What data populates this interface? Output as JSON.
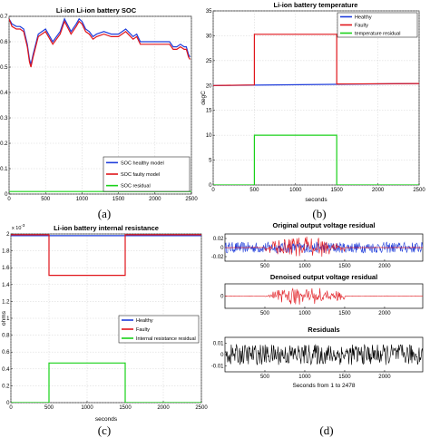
{
  "captions": [
    "(a)",
    "(b)",
    "(c)",
    "(d)"
  ],
  "chart_data": [
    {
      "type": "line",
      "title": "Li-ion Li-ion battery SOC",
      "xlabel": "",
      "ylabel": "",
      "xlim": [
        0,
        2500
      ],
      "ylim": [
        0,
        0.7
      ],
      "xticks": [
        "0",
        "500",
        "1000",
        "1500",
        "2000",
        "2500"
      ],
      "yticks": [
        "0",
        "0.1",
        "0.2",
        "0.3",
        "0.4",
        "0.5",
        "0.6",
        "0.7"
      ],
      "grid": true,
      "legend": "bottom-right",
      "series": [
        {
          "name": "SOC healthy model",
          "color": "#1f3ddb",
          "x": [
            0,
            40,
            100,
            150,
            200,
            250,
            280,
            300,
            330,
            400,
            500,
            600,
            700,
            760,
            850,
            920,
            960,
            1000,
            1050,
            1100,
            1150,
            1200,
            1300,
            1400,
            1500,
            1600,
            1700,
            1750,
            1800,
            2000,
            2200,
            2250,
            2300,
            2350,
            2400,
            2430,
            2460,
            2480
          ],
          "y": [
            0.69,
            0.67,
            0.66,
            0.66,
            0.65,
            0.59,
            0.53,
            0.51,
            0.55,
            0.63,
            0.65,
            0.6,
            0.64,
            0.69,
            0.64,
            0.67,
            0.69,
            0.68,
            0.65,
            0.64,
            0.62,
            0.63,
            0.64,
            0.63,
            0.63,
            0.65,
            0.62,
            0.63,
            0.6,
            0.6,
            0.6,
            0.58,
            0.58,
            0.59,
            0.58,
            0.58,
            0.55,
            0.54
          ]
        },
        {
          "name": "SOC faulty model",
          "color": "#e0151b",
          "x": [
            0,
            40,
            100,
            150,
            200,
            250,
            280,
            300,
            330,
            400,
            500,
            600,
            700,
            760,
            850,
            920,
            960,
            1000,
            1050,
            1100,
            1150,
            1200,
            1300,
            1400,
            1500,
            1600,
            1700,
            1750,
            1800,
            2000,
            2200,
            2250,
            2300,
            2350,
            2400,
            2430,
            2460,
            2480
          ],
          "y": [
            0.69,
            0.66,
            0.65,
            0.65,
            0.64,
            0.58,
            0.52,
            0.5,
            0.54,
            0.62,
            0.64,
            0.59,
            0.63,
            0.68,
            0.63,
            0.66,
            0.68,
            0.67,
            0.64,
            0.63,
            0.61,
            0.62,
            0.63,
            0.62,
            0.62,
            0.64,
            0.61,
            0.62,
            0.59,
            0.59,
            0.59,
            0.57,
            0.57,
            0.58,
            0.57,
            0.57,
            0.54,
            0.53
          ]
        },
        {
          "name": "SOC residual",
          "color": "#19d119",
          "x": [
            0,
            2500
          ],
          "y": [
            0.01,
            0.01
          ]
        }
      ]
    },
    {
      "type": "line",
      "title": "Li-ion battery temperature",
      "xlabel": "seconds",
      "ylabel": "degC",
      "xlim": [
        0,
        2500
      ],
      "ylim": [
        0,
        35
      ],
      "xticks": [
        "0",
        "500",
        "1000",
        "1500",
        "2000",
        "2500"
      ],
      "yticks": [
        "0",
        "5",
        "10",
        "15",
        "20",
        "25",
        "30",
        "35"
      ],
      "grid": true,
      "legend": "top-right",
      "series": [
        {
          "name": "Healthy",
          "color": "#1f3ddb",
          "x": [
            0,
            2500
          ],
          "y": [
            20,
            20.4
          ]
        },
        {
          "name": "Faulty",
          "color": "#e0151b",
          "x": [
            0,
            500,
            500,
            1500,
            1500,
            2500
          ],
          "y": [
            20,
            20.1,
            30.3,
            30.3,
            20.3,
            20.4
          ]
        },
        {
          "name": "temperature residual",
          "color": "#19d119",
          "x": [
            0,
            500,
            500,
            1500,
            1500,
            2500
          ],
          "y": [
            0,
            0,
            10,
            10,
            0,
            0
          ]
        }
      ]
    },
    {
      "type": "line",
      "title": "Li-ion battery internal resistance",
      "xlabel": "seconds",
      "ylabel": "ohms",
      "multiplier": "x 10",
      "multiplier_exp": "-3",
      "xlim": [
        0,
        2500
      ],
      "ylim": [
        0,
        2
      ],
      "xticks": [
        "0",
        "500",
        "1000",
        "1500",
        "2000",
        "2500"
      ],
      "yticks": [
        "0",
        "0.2",
        "0.4",
        "0.6",
        "0.8",
        "1",
        "1.2",
        "1.4",
        "1.6",
        "1.8",
        "2"
      ],
      "grid": true,
      "legend": "right",
      "series": [
        {
          "name": "Healthy",
          "color": "#1f3ddb",
          "x": [
            0,
            2500
          ],
          "y": [
            1.98,
            1.98
          ]
        },
        {
          "name": "Faulty",
          "color": "#e0151b",
          "x": [
            0,
            500,
            500,
            1500,
            1500,
            2500
          ],
          "y": [
            1.99,
            1.99,
            1.51,
            1.51,
            1.99,
            1.99
          ]
        },
        {
          "name": "Internal resistance residual",
          "color": "#19d119",
          "x": [
            0,
            500,
            500,
            1500,
            1500,
            2500
          ],
          "y": [
            0,
            0,
            0.47,
            0.47,
            0,
            0
          ]
        }
      ]
    },
    {
      "type": "line",
      "title": "Original output voltage residual",
      "xlim": [
        0,
        2478
      ],
      "ylim": [
        -0.03,
        0.03
      ],
      "xticks": [
        "500",
        "1000",
        "1500",
        "2000"
      ],
      "yticks": [
        "-0.02",
        "0",
        "0.02"
      ],
      "series": [
        {
          "name": "",
          "color": "#1f3ddb",
          "noise_amplitude": 0.012
        },
        {
          "name": "",
          "color": "#e0151b",
          "burst_from": 500,
          "burst_to": 1500,
          "burst_amplitude": 0.025
        }
      ]
    },
    {
      "type": "line",
      "title": "Denoised output voltage residual",
      "xlim": [
        0,
        2478
      ],
      "ylim": [
        -0.03,
        0.03
      ],
      "xticks": [
        "500",
        "1000",
        "1500",
        "2000"
      ],
      "yticks": [
        "0"
      ],
      "series": [
        {
          "name": "",
          "color": "#e0151b",
          "burst_from": 500,
          "burst_to": 1500,
          "burst_amplitude": 0.022
        }
      ]
    },
    {
      "type": "line",
      "title": "Residuals",
      "xlabel": "Seconds from 1 to 2478",
      "xlim": [
        0,
        2478
      ],
      "ylim": [
        -0.015,
        0.015
      ],
      "xticks": [
        "500",
        "1000",
        "1500",
        "2000"
      ],
      "yticks": [
        "-0.01",
        "0",
        "0.01"
      ],
      "series": [
        {
          "name": "",
          "color": "#000000",
          "noise_amplitude": 0.009
        }
      ]
    }
  ]
}
